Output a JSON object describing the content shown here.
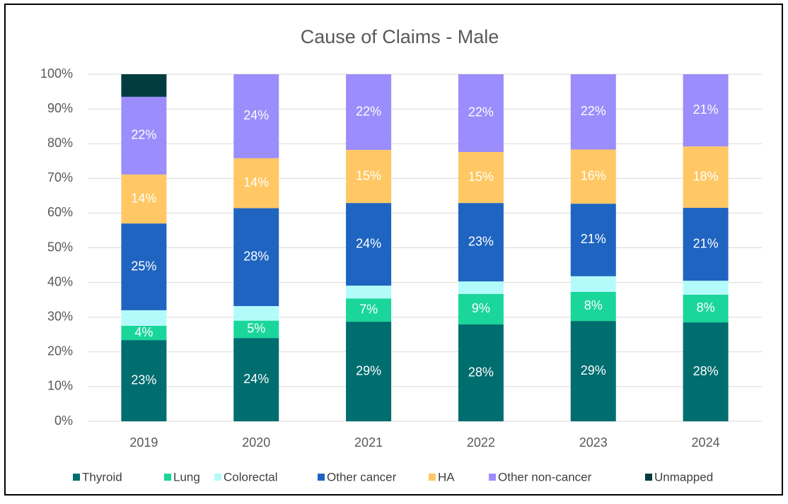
{
  "chart_data": {
    "type": "bar",
    "stacked": true,
    "title": "Cause of Claims - Male",
    "categories": [
      "2019",
      "2020",
      "2021",
      "2022",
      "2023",
      "2024"
    ],
    "ylim": [
      0,
      100
    ],
    "yticks": [
      {
        "value": 0,
        "label": "0%"
      },
      {
        "value": 10,
        "label": "10%"
      },
      {
        "value": 20,
        "label": "20%"
      },
      {
        "value": 30,
        "label": "30%"
      },
      {
        "value": 40,
        "label": "40%"
      },
      {
        "value": 50,
        "label": "50%"
      },
      {
        "value": 60,
        "label": "60%"
      },
      {
        "value": 70,
        "label": "70%"
      },
      {
        "value": 80,
        "label": "80%"
      },
      {
        "value": 90,
        "label": "90%"
      },
      {
        "value": 100,
        "label": "100%"
      }
    ],
    "grid": true,
    "legend": "bottom",
    "series": [
      {
        "name": "Thyroid",
        "color": "#006d6f",
        "values": [
          23.4,
          24.0,
          28.7,
          27.9,
          28.9,
          28.5
        ],
        "value_labels": [
          "23%",
          "24%",
          "29%",
          "28%",
          "29%",
          "28%"
        ]
      },
      {
        "name": "Lung",
        "color": "#1ad69a",
        "values": [
          4.1,
          5.0,
          6.7,
          8.8,
          8.4,
          8.0
        ],
        "value_labels": [
          "4%",
          "5%",
          "7%",
          "9%",
          "8%",
          "8%"
        ]
      },
      {
        "name": "Colorectal",
        "color": "#b3fbfb",
        "values": [
          4.5,
          4.2,
          3.7,
          3.6,
          4.5,
          4.0
        ]
      },
      {
        "name": "Other cancer",
        "color": "#1f64c0",
        "values": [
          25.0,
          28.2,
          23.8,
          22.6,
          20.9,
          21.0
        ],
        "value_labels": [
          "25%",
          "28%",
          "24%",
          "23%",
          "21%",
          "21%"
        ]
      },
      {
        "name": "HA",
        "color": "#ffc864",
        "values": [
          14.1,
          14.4,
          15.3,
          14.7,
          15.6,
          17.7
        ],
        "value_labels": [
          "14%",
          "14%",
          "15%",
          "15%",
          "16%",
          "18%"
        ]
      },
      {
        "name": "Other non-cancer",
        "color": "#9b8dfb",
        "values": [
          22.4,
          24.2,
          21.8,
          22.4,
          21.7,
          20.8
        ],
        "value_labels": [
          "22%",
          "24%",
          "22%",
          "22%",
          "22%",
          "21%"
        ]
      },
      {
        "name": "Unmapped",
        "color": "#003c40",
        "values": [
          6.5,
          0,
          0,
          0,
          0,
          0
        ]
      }
    ]
  }
}
